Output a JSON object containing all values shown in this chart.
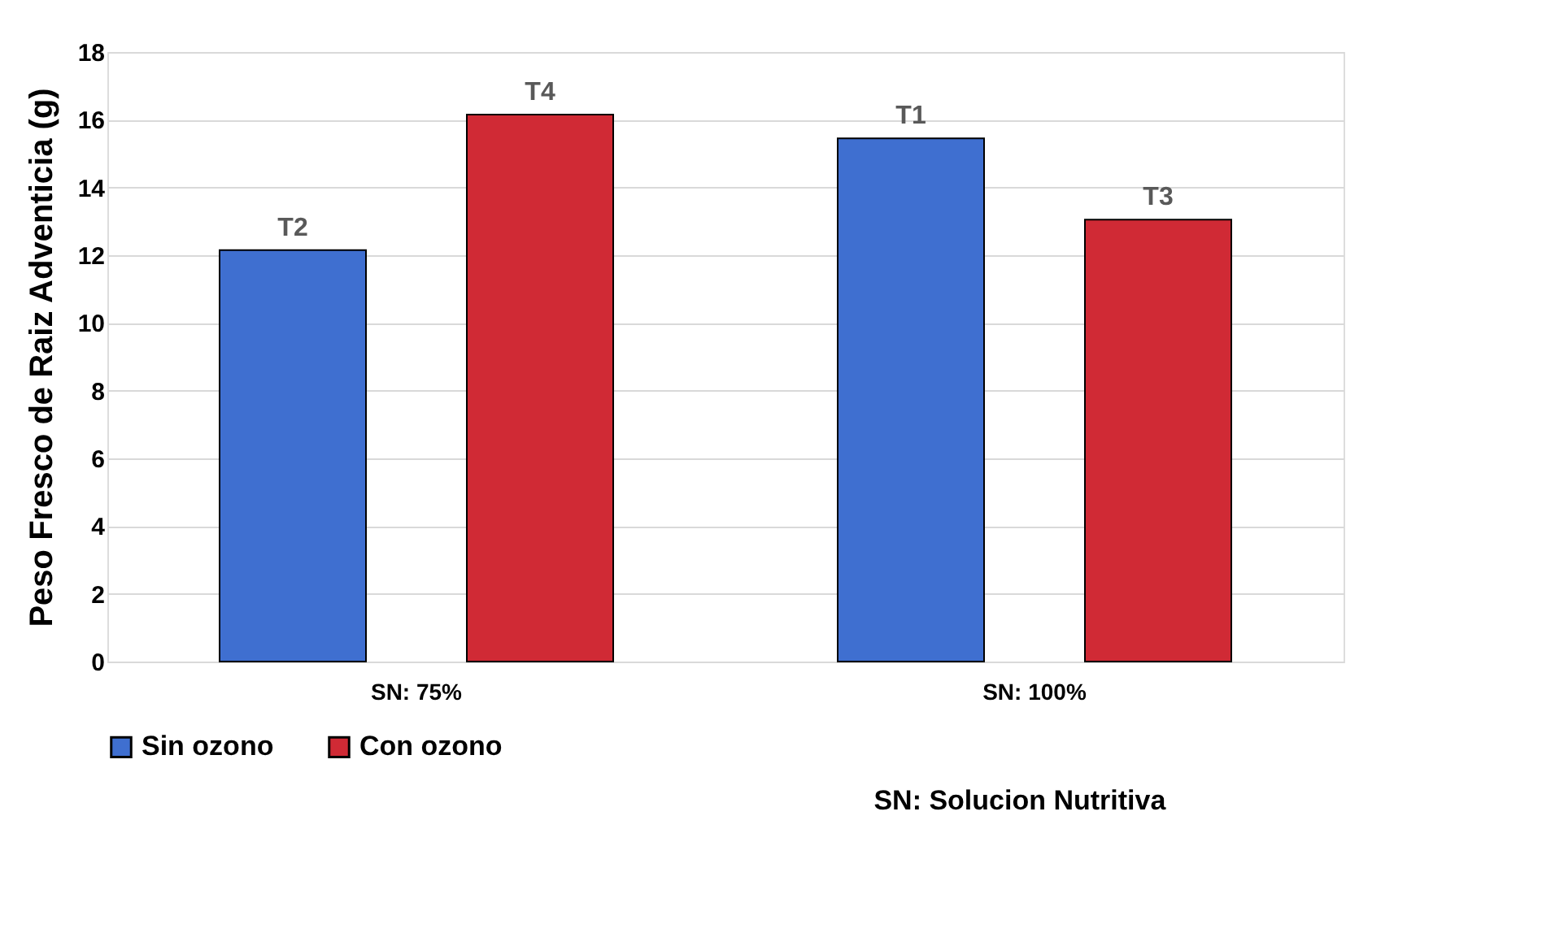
{
  "chart_data": {
    "type": "bar",
    "ylabel": "Peso Fresco de Raiz Adventicia (g)",
    "categories": [
      "SN: 75%",
      "SN: 100%"
    ],
    "series": [
      {
        "name": "Sin ozono",
        "color": "#3f6fd0",
        "values": [
          12.15,
          15.45
        ],
        "value_labels": [
          "T2",
          "T1"
        ]
      },
      {
        "name": "Con ozono",
        "color": "#d02a35",
        "values": [
          16.15,
          13.05
        ],
        "value_labels": [
          "T4",
          "T3"
        ]
      }
    ],
    "ylim": [
      0,
      18
    ],
    "yticks": [
      0,
      2,
      4,
      6,
      8,
      10,
      12,
      14,
      16,
      18
    ],
    "grid": "y",
    "legend": "bottom",
    "annotations": [
      "SN: Solucion Nutritiva"
    ]
  }
}
